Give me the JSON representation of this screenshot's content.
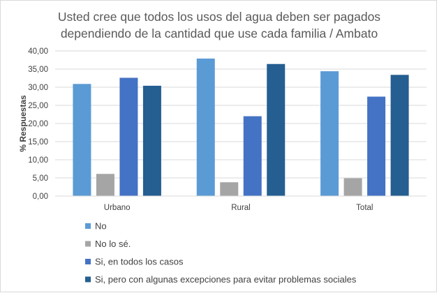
{
  "chart_data": {
    "type": "bar",
    "title_lines": [
      "Usted cree que todos los usos del agua deben ser pagados",
      "dependiendo de la cantidad que use cada familia / Ambato"
    ],
    "ylabel": "% Respuestas",
    "xlabel": "",
    "categories": [
      "Urbano",
      "Rural",
      "Total"
    ],
    "series": [
      {
        "name": "No",
        "color": "#5b9bd5",
        "values": [
          30.9,
          37.9,
          34.4
        ]
      },
      {
        "name": "No lo sé.",
        "color": "#a5a5a5",
        "values": [
          6.1,
          3.8,
          4.9
        ]
      },
      {
        "name": "Si, en todos los casos",
        "color": "#4472c4",
        "values": [
          32.6,
          22.0,
          27.4
        ]
      },
      {
        "name": "Si, pero con algunas excepciones para evitar problemas sociales",
        "color": "#255e91",
        "values": [
          30.4,
          36.4,
          33.4
        ]
      }
    ],
    "ylim": [
      0,
      40
    ],
    "yticks": [
      "0,00",
      "5,00",
      "10,00",
      "15,00",
      "20,00",
      "25,00",
      "30,00",
      "35,00",
      "40,00"
    ],
    "ytick_values": [
      0,
      5,
      10,
      15,
      20,
      25,
      30,
      35,
      40
    ],
    "grid": true,
    "legend_position": "bottom-left"
  }
}
